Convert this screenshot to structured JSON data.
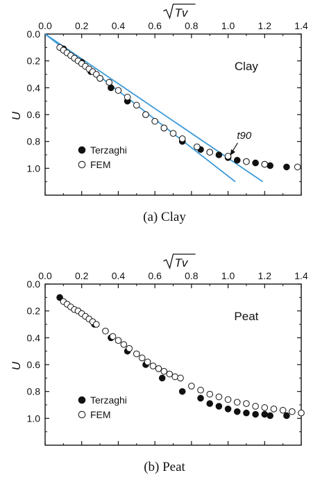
{
  "chart_data": [
    {
      "type": "scatter",
      "caption": "(a) Clay",
      "panel_label": "Clay",
      "xlabel": "√Tv",
      "ylabel": "U",
      "xlim": [
        0,
        1.4
      ],
      "ylim": [
        0,
        1.2
      ],
      "y_inverted": true,
      "x_axis_position": "top",
      "x_ticks": [
        "0.0",
        "0.2",
        "0.4",
        "0.6",
        "0.8",
        "1.0",
        "1.2",
        "1.4"
      ],
      "y_ticks": [
        "0.0",
        "0.2",
        "0.4",
        "0.6",
        "0.8",
        "1.0"
      ],
      "legend": "bottom-left",
      "annotation": {
        "text": "t90",
        "x": 1.0,
        "y": 0.92
      },
      "lines": [
        {
          "color": "#3a9ad9",
          "points": [
            [
              0.0,
              0.0
            ],
            [
              1.04,
              1.1
            ]
          ]
        },
        {
          "color": "#3a9ad9",
          "points": [
            [
              0.0,
              0.0
            ],
            [
              1.19,
              1.1
            ]
          ]
        }
      ],
      "series": [
        {
          "name": "Terzaghi",
          "marker": "filled",
          "points": [
            [
              0.1,
              0.11
            ],
            [
              0.2,
              0.21
            ],
            [
              0.25,
              0.28
            ],
            [
              0.3,
              0.33
            ],
            [
              0.36,
              0.4
            ],
            [
              0.45,
              0.5
            ],
            [
              0.55,
              0.6
            ],
            [
              0.65,
              0.7
            ],
            [
              0.75,
              0.8
            ],
            [
              0.85,
              0.86
            ],
            [
              0.9,
              0.88
            ],
            [
              0.95,
              0.9
            ],
            [
              1.0,
              0.92
            ],
            [
              1.05,
              0.94
            ],
            [
              1.1,
              0.95
            ],
            [
              1.15,
              0.96
            ],
            [
              1.2,
              0.97
            ],
            [
              1.23,
              0.98
            ],
            [
              1.32,
              0.99
            ]
          ]
        },
        {
          "name": "FEM",
          "marker": "open",
          "points": [
            [
              0.08,
              0.1
            ],
            [
              0.1,
              0.12
            ],
            [
              0.12,
              0.14
            ],
            [
              0.14,
              0.16
            ],
            [
              0.16,
              0.18
            ],
            [
              0.18,
              0.2
            ],
            [
              0.2,
              0.22
            ],
            [
              0.22,
              0.24
            ],
            [
              0.24,
              0.26
            ],
            [
              0.26,
              0.28
            ],
            [
              0.28,
              0.3
            ],
            [
              0.3,
              0.33
            ],
            [
              0.35,
              0.36
            ],
            [
              0.4,
              0.42
            ],
            [
              0.45,
              0.47
            ],
            [
              0.5,
              0.53
            ],
            [
              0.55,
              0.6
            ],
            [
              0.6,
              0.65
            ],
            [
              0.65,
              0.7
            ],
            [
              0.7,
              0.74
            ],
            [
              0.75,
              0.78
            ],
            [
              0.83,
              0.84
            ],
            [
              0.9,
              0.88
            ],
            [
              1.0,
              0.91
            ],
            [
              1.1,
              0.95
            ],
            [
              1.2,
              0.97
            ],
            [
              1.38,
              0.99
            ]
          ]
        }
      ]
    },
    {
      "type": "scatter",
      "caption": "(b) Peat",
      "panel_label": "Peat",
      "xlabel": "√Tv",
      "ylabel": "U",
      "xlim": [
        0,
        1.4
      ],
      "ylim": [
        0,
        1.2
      ],
      "y_inverted": true,
      "x_axis_position": "top",
      "x_ticks": [
        "0.0",
        "0.2",
        "0.4",
        "0.6",
        "0.8",
        "1.0",
        "1.2",
        "1.4"
      ],
      "y_ticks": [
        "0.0",
        "0.2",
        "0.4",
        "0.6",
        "0.8",
        "1.0"
      ],
      "legend": "bottom-left",
      "series": [
        {
          "name": "Terzaghi",
          "marker": "filled",
          "points": [
            [
              0.08,
              0.1
            ],
            [
              0.18,
              0.2
            ],
            [
              0.27,
              0.3
            ],
            [
              0.36,
              0.4
            ],
            [
              0.45,
              0.5
            ],
            [
              0.55,
              0.6
            ],
            [
              0.64,
              0.7
            ],
            [
              0.75,
              0.8
            ],
            [
              0.85,
              0.85
            ],
            [
              0.9,
              0.89
            ],
            [
              0.95,
              0.91
            ],
            [
              1.0,
              0.93
            ],
            [
              1.05,
              0.95
            ],
            [
              1.1,
              0.96
            ],
            [
              1.15,
              0.97
            ],
            [
              1.2,
              0.97
            ],
            [
              1.23,
              0.98
            ],
            [
              1.32,
              0.98
            ]
          ]
        },
        {
          "name": "FEM",
          "marker": "open",
          "points": [
            [
              0.1,
              0.13
            ],
            [
              0.12,
              0.15
            ],
            [
              0.14,
              0.17
            ],
            [
              0.16,
              0.19
            ],
            [
              0.18,
              0.2
            ],
            [
              0.2,
              0.22
            ],
            [
              0.22,
              0.24
            ],
            [
              0.24,
              0.26
            ],
            [
              0.26,
              0.28
            ],
            [
              0.28,
              0.3
            ],
            [
              0.33,
              0.35
            ],
            [
              0.37,
              0.39
            ],
            [
              0.4,
              0.42
            ],
            [
              0.43,
              0.45
            ],
            [
              0.46,
              0.48
            ],
            [
              0.5,
              0.52
            ],
            [
              0.53,
              0.55
            ],
            [
              0.56,
              0.58
            ],
            [
              0.59,
              0.61
            ],
            [
              0.62,
              0.63
            ],
            [
              0.65,
              0.65
            ],
            [
              0.68,
              0.67
            ],
            [
              0.71,
              0.69
            ],
            [
              0.74,
              0.7
            ],
            [
              0.8,
              0.76
            ],
            [
              0.85,
              0.79
            ],
            [
              0.9,
              0.82
            ],
            [
              0.95,
              0.84
            ],
            [
              1.0,
              0.86
            ],
            [
              1.05,
              0.88
            ],
            [
              1.1,
              0.89
            ],
            [
              1.15,
              0.91
            ],
            [
              1.2,
              0.92
            ],
            [
              1.25,
              0.93
            ],
            [
              1.3,
              0.94
            ],
            [
              1.35,
              0.95
            ],
            [
              1.4,
              0.96
            ]
          ]
        }
      ]
    }
  ]
}
